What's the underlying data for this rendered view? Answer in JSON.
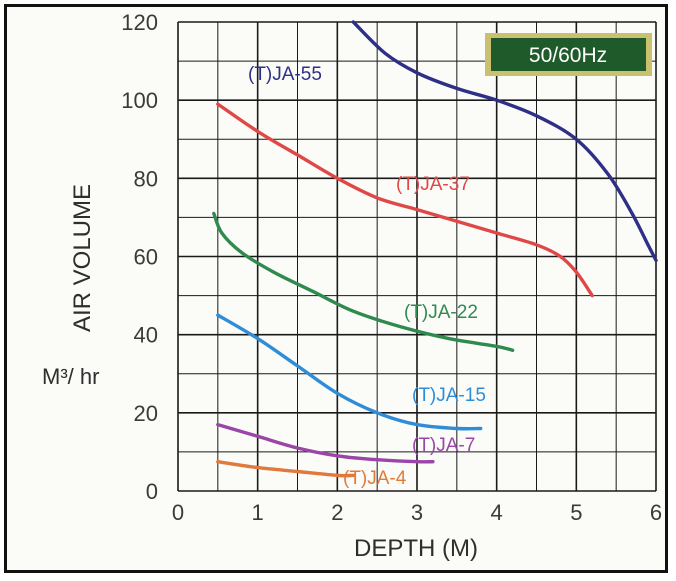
{
  "chart_data": {
    "type": "line",
    "xlabel": "DEPTH (M)",
    "ylabel": "AIR VOLUME",
    "unit_label": "M³/ hr",
    "badge": "50/60Hz",
    "xlim": [
      0,
      6
    ],
    "ylim": [
      0,
      120
    ],
    "xticks": [
      "0",
      "1",
      "2",
      "3",
      "4",
      "5",
      "6"
    ],
    "yticks": [
      "0",
      "20",
      "40",
      "60",
      "80",
      "100",
      "120"
    ],
    "grid": true,
    "colors": {
      "background": "#fbfbf8",
      "grid": "#1a1a1a",
      "badge_fill": "#1f5a2a",
      "badge_border": "#c9c070"
    },
    "series": [
      {
        "name": "(T)JA-55",
        "color": "#2e2f86",
        "x": [
          2.2,
          2.6,
          3.0,
          3.5,
          4.0,
          4.5,
          5.0,
          5.4,
          5.7,
          5.9,
          6.0
        ],
        "y": [
          120,
          112,
          107,
          103,
          100,
          96,
          90,
          81,
          71,
          63,
          59
        ]
      },
      {
        "name": "(T)JA-37",
        "color": "#e04848",
        "x": [
          0.5,
          1.0,
          1.5,
          2.0,
          2.5,
          3.0,
          3.5,
          4.0,
          4.5,
          4.8,
          5.0,
          5.2
        ],
        "y": [
          99,
          92,
          86,
          80,
          75,
          72,
          69,
          66,
          63,
          60,
          56,
          50
        ]
      },
      {
        "name": "(T)JA-22",
        "color": "#2f8a4e",
        "x": [
          0.45,
          0.55,
          0.8,
          1.2,
          1.7,
          2.2,
          2.8,
          3.4,
          4.0,
          4.2
        ],
        "y": [
          71,
          66,
          61,
          56,
          51,
          46,
          42,
          39,
          37,
          36
        ]
      },
      {
        "name": "(T)JA-15",
        "color": "#2f8dd8",
        "x": [
          0.5,
          1.0,
          1.5,
          2.0,
          2.5,
          3.0,
          3.5,
          3.8
        ],
        "y": [
          45,
          39,
          32,
          25,
          20,
          17,
          16,
          16
        ]
      },
      {
        "name": "(T)JA-7",
        "color": "#9b45a8",
        "x": [
          0.5,
          1.0,
          1.5,
          2.0,
          2.5,
          3.0,
          3.2
        ],
        "y": [
          17,
          14,
          11,
          9,
          8,
          7.5,
          7.5
        ]
      },
      {
        "name": "(T)JA-4",
        "color": "#e07a3c",
        "x": [
          0.5,
          1.0,
          1.5,
          2.0,
          2.2
        ],
        "y": [
          7.5,
          6,
          5,
          4,
          4
        ]
      }
    ]
  }
}
